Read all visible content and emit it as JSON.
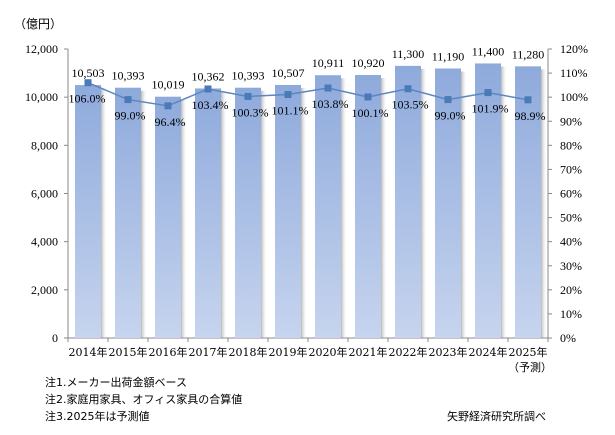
{
  "chart_data": {
    "type": "bar+line",
    "unit_label": "（億円）",
    "categories": [
      "2014年",
      "2015年",
      "2016年",
      "2017年",
      "2018年",
      "2019年",
      "2020年",
      "2021年",
      "2022年",
      "2023年",
      "2024年",
      "2025年"
    ],
    "category_sublabels": [
      "",
      "",
      "",
      "",
      "",
      "",
      "",
      "",
      "",
      "",
      "",
      "（予測）"
    ],
    "series": [
      {
        "type": "bar",
        "axis": "left",
        "values": [
          10503,
          10393,
          10019,
          10362,
          10393,
          10507,
          10911,
          10920,
          11300,
          11190,
          11400,
          11280
        ],
        "labels": [
          "10,503",
          "10,393",
          "10,019",
          "10,362",
          "10,393",
          "10,507",
          "10,911",
          "10,920",
          "11,300",
          "11,190",
          "11,400",
          "11,280"
        ]
      },
      {
        "type": "line",
        "axis": "right",
        "values": [
          106.0,
          99.0,
          96.4,
          103.4,
          100.3,
          101.1,
          103.8,
          100.1,
          103.5,
          99.0,
          101.9,
          98.9
        ],
        "labels": [
          "106.0%",
          "99.0%",
          "96.4%",
          "103.4%",
          "100.3%",
          "101.1%",
          "103.8%",
          "100.1%",
          "103.5%",
          "99.0%",
          "101.9%",
          "98.9%"
        ]
      }
    ],
    "left_axis": {
      "range": [
        0,
        12000
      ],
      "ticks": [
        "0",
        "2,000",
        "4,000",
        "6,000",
        "8,000",
        "10,000",
        "12,000"
      ]
    },
    "right_axis": {
      "range": [
        0,
        120
      ],
      "ticks": [
        "0%",
        "10%",
        "20%",
        "30%",
        "40%",
        "50%",
        "60%",
        "70%",
        "80%",
        "90%",
        "100%",
        "110%",
        "120%"
      ]
    },
    "grid": false,
    "colors": {
      "bar_top": "#8eaadc",
      "bar_bottom": "#c6d4ee",
      "line": "#5b86c0",
      "marker": "#4a7ab8"
    }
  },
  "notes": [
    "注1.メーカー出荷金額ベース",
    "注2.家庭用家具、オフィス家具の合算値",
    "注3.2025年は予測値"
  ],
  "source": "矢野経済研究所調べ"
}
